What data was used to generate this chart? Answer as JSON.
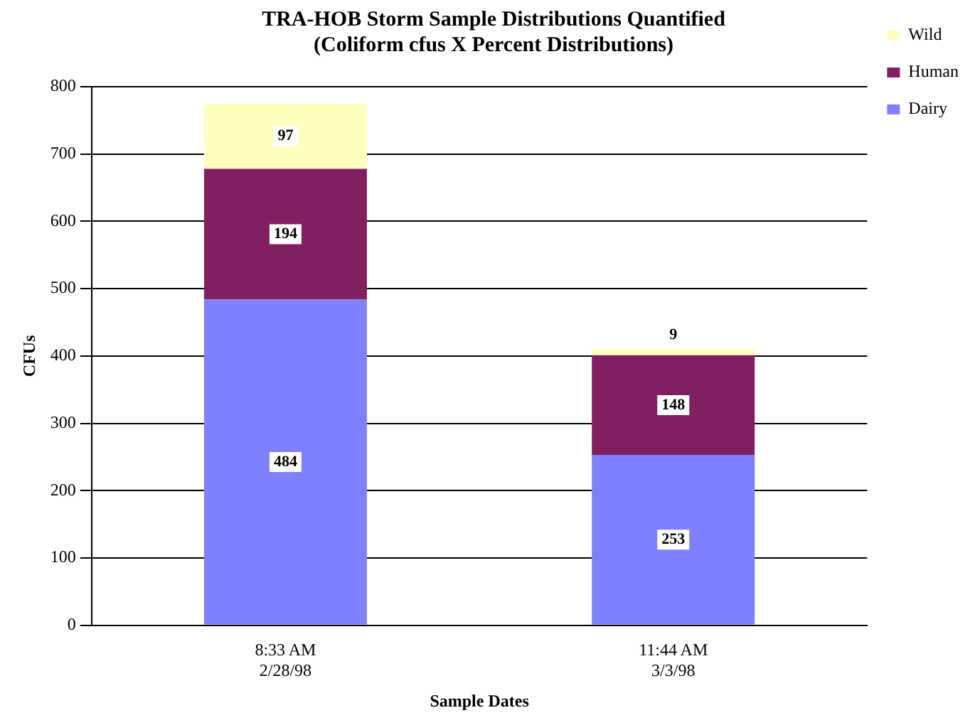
{
  "chart_data": {
    "type": "bar",
    "title": "TRA-HOB Storm Sample Distributions Quantified\n(Coliform cfus X Percent Distributions)",
    "xlabel": "Sample Dates",
    "ylabel": "CFUs",
    "categories": [
      "8:33 AM\n2/28/98",
      "11:44 AM\n3/3/98"
    ],
    "series": [
      {
        "name": "Dairy",
        "color": "#8080ff",
        "values": [
          484,
          253
        ]
      },
      {
        "name": "Human",
        "color": "#802060",
        "values": [
          194,
          148
        ]
      },
      {
        "name": "Wild",
        "color": "#ffffc0",
        "values": [
          97,
          9
        ]
      }
    ],
    "stacked": true,
    "ylim": [
      0,
      800
    ],
    "yticks": [
      0,
      100,
      200,
      300,
      400,
      500,
      600,
      700,
      800
    ],
    "grid": "y",
    "legend": "top right",
    "data_labels": true
  }
}
